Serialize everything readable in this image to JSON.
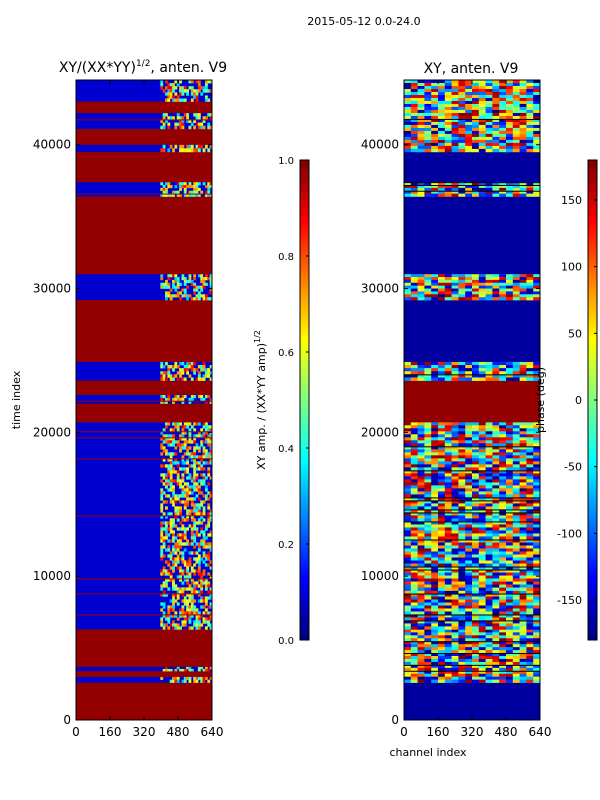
{
  "figure": {
    "suptitle": "2015-05-12 0.0-24.0"
  },
  "chart_data": [
    {
      "type": "heatmap",
      "title_prefix": "XY/(XX*YY)",
      "title_exponent": "1/2",
      "title_suffix": ", anten. V9",
      "xlabel": "",
      "ylabel": "time index",
      "xlim": [
        0,
        640
      ],
      "ylim": [
        0,
        44500
      ],
      "xticks": [
        0,
        160,
        320,
        480,
        640
      ],
      "yticks": [
        0,
        10000,
        20000,
        30000,
        40000
      ],
      "colorbar": {
        "label_prefix": "XY amp. / (XX*YY amp)",
        "label_exponent": "1/2",
        "range": [
          0.0,
          1.0
        ],
        "ticks": [
          0.0,
          0.2,
          0.4,
          0.6,
          0.8,
          1.0
        ],
        "colormap": "jet"
      },
      "row_bands": [
        {
          "from": 0,
          "to": 2600,
          "kind": "saturated"
        },
        {
          "from": 2600,
          "to": 3000,
          "kind": "variable"
        },
        {
          "from": 3000,
          "to": 3400,
          "kind": "saturated"
        },
        {
          "from": 3400,
          "to": 3700,
          "kind": "variable"
        },
        {
          "from": 3700,
          "to": 6300,
          "kind": "saturated"
        },
        {
          "from": 6300,
          "to": 20700,
          "kind": "variable"
        },
        {
          "from": 20700,
          "to": 22000,
          "kind": "saturated"
        },
        {
          "from": 22000,
          "to": 22600,
          "kind": "variable"
        },
        {
          "from": 22600,
          "to": 23600,
          "kind": "saturated"
        },
        {
          "from": 23600,
          "to": 24900,
          "kind": "variable"
        },
        {
          "from": 24900,
          "to": 29200,
          "kind": "saturated"
        },
        {
          "from": 29200,
          "to": 31000,
          "kind": "variable"
        },
        {
          "from": 31000,
          "to": 36400,
          "kind": "saturated"
        },
        {
          "from": 36400,
          "to": 37400,
          "kind": "variable"
        },
        {
          "from": 37400,
          "to": 39500,
          "kind": "saturated"
        },
        {
          "from": 39500,
          "to": 40000,
          "kind": "variable"
        },
        {
          "from": 40000,
          "to": 41100,
          "kind": "saturated"
        },
        {
          "from": 41100,
          "to": 42200,
          "kind": "variable"
        },
        {
          "from": 42200,
          "to": 43000,
          "kind": "saturated"
        },
        {
          "from": 43000,
          "to": 44500,
          "kind": "variable"
        }
      ]
    },
    {
      "type": "heatmap",
      "title": "XY, anten. V9",
      "xlabel": "channel index",
      "ylabel": "",
      "xlim": [
        0,
        640
      ],
      "ylim": [
        0,
        44500
      ],
      "xticks": [
        0,
        160,
        320,
        480,
        640
      ],
      "yticks": [
        0,
        10000,
        20000,
        30000,
        40000
      ],
      "colorbar": {
        "label": "phase (deg)",
        "range": [
          -180,
          180
        ],
        "ticks": [
          -150,
          -100,
          -50,
          0,
          50,
          100,
          150
        ],
        "colormap": "jet"
      },
      "row_bands": [
        {
          "from": 0,
          "to": 2600,
          "kind": "constant-low"
        },
        {
          "from": 2600,
          "to": 6300,
          "kind": "variable"
        },
        {
          "from": 6300,
          "to": 9000,
          "kind": "variable"
        },
        {
          "from": 9000,
          "to": 20700,
          "kind": "variable"
        },
        {
          "from": 20700,
          "to": 23600,
          "kind": "saturated"
        },
        {
          "from": 23600,
          "to": 24900,
          "kind": "variable"
        },
        {
          "from": 24900,
          "to": 29200,
          "kind": "constant-low"
        },
        {
          "from": 29200,
          "to": 31000,
          "kind": "variable"
        },
        {
          "from": 31000,
          "to": 36400,
          "kind": "constant-low"
        },
        {
          "from": 36400,
          "to": 37400,
          "kind": "variable"
        },
        {
          "from": 37400,
          "to": 39500,
          "kind": "constant-low"
        },
        {
          "from": 39500,
          "to": 44500,
          "kind": "variable"
        }
      ]
    }
  ]
}
